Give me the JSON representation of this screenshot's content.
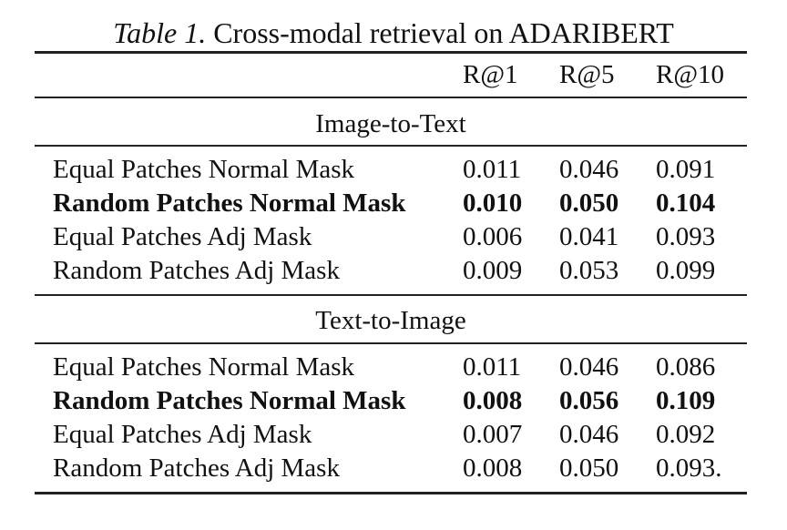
{
  "caption": {
    "label": "Table 1.",
    "text": "Cross-modal retrieval on ADARIBERT"
  },
  "columns": [
    "R@1",
    "R@5",
    "R@10"
  ],
  "sections": [
    {
      "title": "Image-to-Text",
      "rows": [
        {
          "name": "Equal Patches Normal Mask",
          "r1": "0.011",
          "r5": "0.046",
          "r10": "0.091",
          "bold": false
        },
        {
          "name": "Random Patches Normal Mask",
          "r1": "0.010",
          "r5": "0.050",
          "r10": "0.104",
          "bold": true
        },
        {
          "name": "Equal Patches Adj Mask",
          "r1": "0.006",
          "r5": "0.041",
          "r10": "0.093",
          "bold": false
        },
        {
          "name": "Random Patches Adj Mask",
          "r1": "0.009",
          "r5": "0.053",
          "r10": "0.099",
          "bold": false
        }
      ]
    },
    {
      "title": "Text-to-Image",
      "rows": [
        {
          "name": "Equal Patches Normal Mask",
          "r1": "0.011",
          "r5": "0.046",
          "r10": "0.086",
          "bold": false
        },
        {
          "name": "Random Patches Normal Mask",
          "r1": "0.008",
          "r5": "0.056",
          "r10": "0.109",
          "bold": true
        },
        {
          "name": "Equal Patches Adj Mask",
          "r1": "0.007",
          "r5": "0.046",
          "r10": "0.092",
          "bold": false
        },
        {
          "name": "Random Patches Adj Mask",
          "r1": "0.008",
          "r5": "0.050",
          "r10": "0.093.",
          "bold": false
        }
      ]
    }
  ]
}
